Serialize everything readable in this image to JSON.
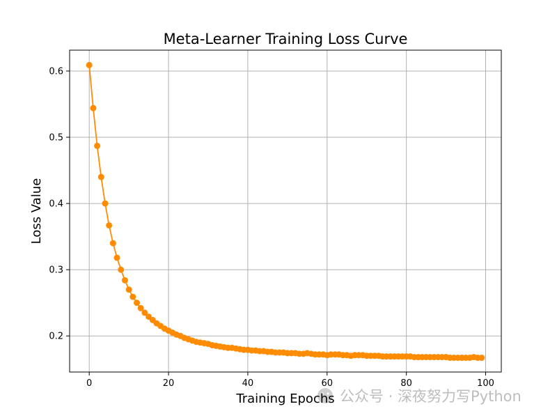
{
  "chart_data": {
    "type": "line",
    "title": "Meta-Learner Training Loss Curve",
    "xlabel": "Training Epochs",
    "ylabel": "Loss Value",
    "xlim": [
      -4.95,
      103.95
    ],
    "ylim": [
      0.1455,
      0.6315
    ],
    "xticks": [
      0,
      20,
      40,
      60,
      80,
      100
    ],
    "yticks": [
      0.2,
      0.3,
      0.4,
      0.5,
      0.6
    ],
    "grid": true,
    "series": [
      {
        "color": "#ff8c00",
        "marker": "circle",
        "x": [
          0,
          1,
          2,
          3,
          4,
          5,
          6,
          7,
          8,
          9,
          10,
          11,
          12,
          13,
          14,
          15,
          16,
          17,
          18,
          19,
          20,
          21,
          22,
          23,
          24,
          25,
          26,
          27,
          28,
          29,
          30,
          31,
          32,
          33,
          34,
          35,
          36,
          37,
          38,
          39,
          40,
          41,
          42,
          43,
          44,
          45,
          46,
          47,
          48,
          49,
          50,
          51,
          52,
          53,
          54,
          55,
          56,
          57,
          58,
          59,
          60,
          61,
          62,
          63,
          64,
          65,
          66,
          67,
          68,
          69,
          70,
          71,
          72,
          73,
          74,
          75,
          76,
          77,
          78,
          79,
          80,
          81,
          82,
          83,
          84,
          85,
          86,
          87,
          88,
          89,
          90,
          91,
          92,
          93,
          94,
          95,
          96,
          97,
          98,
          99
        ],
        "y": [
          0.609,
          0.544,
          0.487,
          0.44,
          0.4,
          0.367,
          0.34,
          0.318,
          0.3,
          0.284,
          0.27,
          0.259,
          0.25,
          0.242,
          0.235,
          0.229,
          0.224,
          0.219,
          0.215,
          0.211,
          0.208,
          0.205,
          0.202,
          0.2,
          0.197,
          0.195,
          0.193,
          0.191,
          0.19,
          0.189,
          0.188,
          0.186,
          0.185,
          0.184,
          0.183,
          0.182,
          0.182,
          0.181,
          0.18,
          0.179,
          0.179,
          0.178,
          0.178,
          0.177,
          0.177,
          0.176,
          0.176,
          0.175,
          0.175,
          0.175,
          0.174,
          0.174,
          0.174,
          0.173,
          0.173,
          0.174,
          0.173,
          0.172,
          0.172,
          0.172,
          0.171,
          0.172,
          0.172,
          0.172,
          0.171,
          0.171,
          0.17,
          0.171,
          0.171,
          0.171,
          0.17,
          0.17,
          0.17,
          0.17,
          0.169,
          0.169,
          0.169,
          0.169,
          0.169,
          0.169,
          0.169,
          0.169,
          0.168,
          0.168,
          0.168,
          0.168,
          0.168,
          0.168,
          0.168,
          0.168,
          0.168,
          0.167,
          0.167,
          0.167,
          0.167,
          0.167,
          0.167,
          0.168,
          0.167,
          0.167
        ]
      }
    ]
  },
  "watermark": {
    "icon": "wechat-icon",
    "text": "公众号 · 深夜努力写Python"
  }
}
